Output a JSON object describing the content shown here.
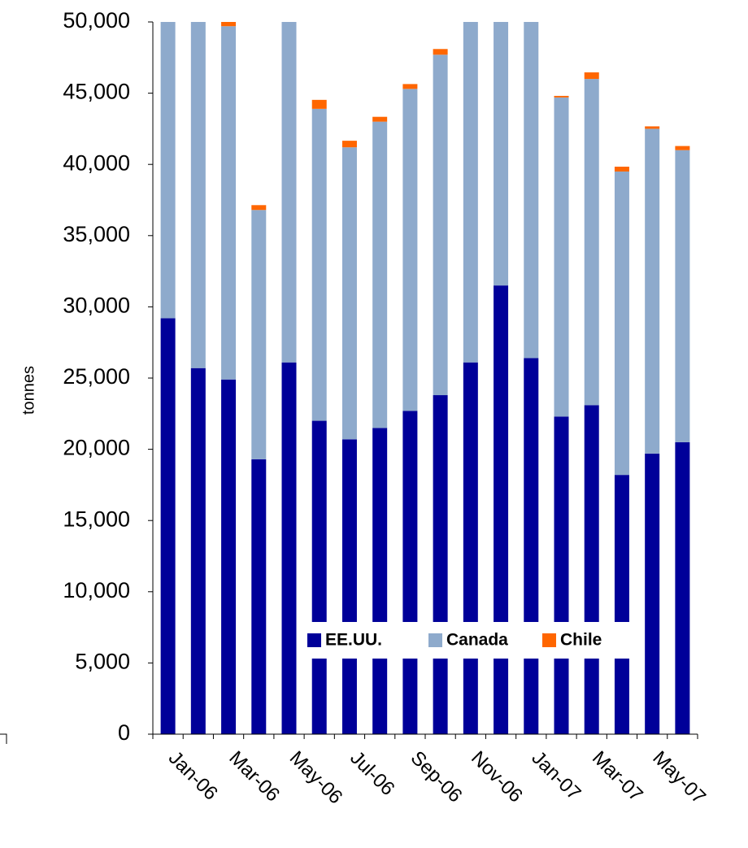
{
  "chart_data": {
    "type": "stacked_bar",
    "y_axis_label": "tonnes",
    "categories": [
      "Jan-06",
      null,
      "Mar-06",
      null,
      "May-06",
      null,
      "Jul-06",
      null,
      "Sep-06",
      null,
      "Nov-06",
      null,
      "Jan-07",
      null,
      "Mar-07",
      null,
      "May-07",
      null
    ],
    "series": [
      {
        "name": "EE.UU.",
        "color": "#000099",
        "values": [
          29200,
          25700,
          24900,
          19300,
          26100,
          22000,
          20700,
          21500,
          22700,
          23800,
          26100,
          31500,
          26400,
          22300,
          23100,
          18200,
          19700,
          20500
        ]
      },
      {
        "name": "Canada",
        "color": "#8eaacc",
        "values": [
          22000,
          25000,
          24800,
          17500,
          25000,
          21900,
          20500,
          21500,
          22600,
          23900,
          25500,
          20000,
          24000,
          22400,
          22900,
          21300,
          22800,
          20500
        ]
      },
      {
        "name": "Chile",
        "color": "#ff6600",
        "values": [
          400,
          400,
          400,
          340,
          400,
          630,
          460,
          340,
          340,
          400,
          400,
          400,
          400,
          110,
          460,
          340,
          170,
          290
        ]
      }
    ],
    "ylim": [
      0,
      50000
    ],
    "yticks": [
      0,
      {
        "value": 5000,
        "label": "5,000"
      },
      {
        "value": 10000,
        "label": "10,000"
      },
      {
        "value": 15000,
        "label": "15,000"
      },
      {
        "value": 20000,
        "label": "20,000"
      },
      {
        "value": 25000,
        "label": "25,000"
      },
      {
        "value": 30000,
        "label": "30,000"
      },
      {
        "value": 35000,
        "label": "35,000"
      },
      {
        "value": 40000,
        "label": "40,000"
      },
      {
        "value": 45000,
        "label": "45,000"
      },
      {
        "value": 50000,
        "label": "50,000"
      }
    ],
    "legend": "inside-bottom-right"
  }
}
